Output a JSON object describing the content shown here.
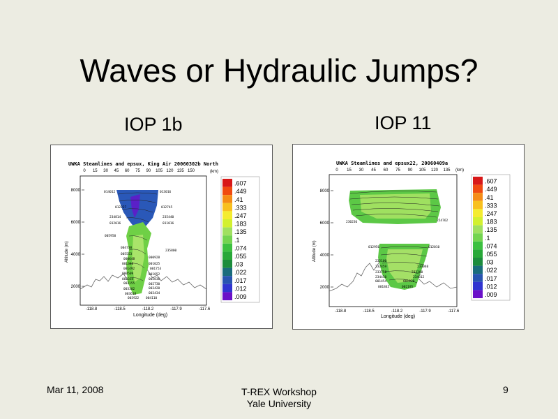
{
  "slide": {
    "title": "Waves or Hydraulic Jumps?",
    "left_label": "IOP 1b",
    "right_label": "IOP 11",
    "footer_date": "Mar 11, 2008",
    "footer_line1": "T-REX Workshop",
    "footer_line2": "Yale University",
    "page_number": "9"
  },
  "left_plot": {
    "title": "UWKA Steamlines and epsux, King Air 20060302b North",
    "top_ticks": [
      "0",
      "15",
      "30",
      "45",
      "60",
      "75",
      "90",
      "105",
      "120",
      "135",
      "150"
    ],
    "top_unit": "(km)",
    "y_ticks": [
      "8000",
      "6000",
      "4000",
      "2000"
    ],
    "ylabel": "Altitude (m)",
    "x_ticks": [
      "-118.8",
      "-118.5",
      "-118.2",
      "-117.9",
      "-117.6"
    ],
    "xlabel": "Longitude (deg)",
    "time_labels": [
      "014012",
      "013016",
      "012227",
      "012745",
      "234814",
      "235440",
      "012016",
      "011016",
      "005950",
      "004738",
      "235800",
      "005553",
      "000648",
      "000928",
      "001348",
      "001025",
      "001492",
      "001753",
      "000509",
      "001852",
      "002334",
      "002836",
      "003155",
      "002730",
      "003302",
      "003420",
      "003618",
      "003434",
      "003922",
      "004110"
    ]
  },
  "right_plot": {
    "title": "UWKA Steamlines and epsux22, 20060409a",
    "top_ticks": [
      "0",
      "15",
      "30",
      "45",
      "60",
      "75",
      "90",
      "105",
      "120",
      "135"
    ],
    "top_unit": "(km)",
    "y_ticks": [
      "8000",
      "6000",
      "4000",
      "2000"
    ],
    "ylabel": "Altitude (m)",
    "x_ticks": [
      "-118.8",
      "-118.5",
      "-118.2",
      "-117.9",
      "-117.6"
    ],
    "xlabel": "Longitude (deg)",
    "time_labels": [
      "230236",
      "224762",
      "012956",
      "012010",
      "232100",
      "233040",
      "232459",
      "233300",
      "233750",
      "234812",
      "234450",
      "001820",
      "001454",
      "002195",
      "001845"
    ]
  },
  "colorbar": {
    "levels": [
      ".607",
      ".449",
      ".41",
      ".333",
      ".247",
      ".183",
      ".135",
      ".1",
      ".074",
      ".055",
      ".03",
      ".022",
      ".017",
      ".012",
      ".009"
    ],
    "colors": [
      "#d81818",
      "#f04a10",
      "#f58c16",
      "#f8c020",
      "#f4ec30",
      "#d2f030",
      "#a0e060",
      "#74d450",
      "#3cc040",
      "#28a838",
      "#1c8c3c",
      "#1a6c7c",
      "#2854b0",
      "#3034d0",
      "#6a10c8"
    ]
  }
}
